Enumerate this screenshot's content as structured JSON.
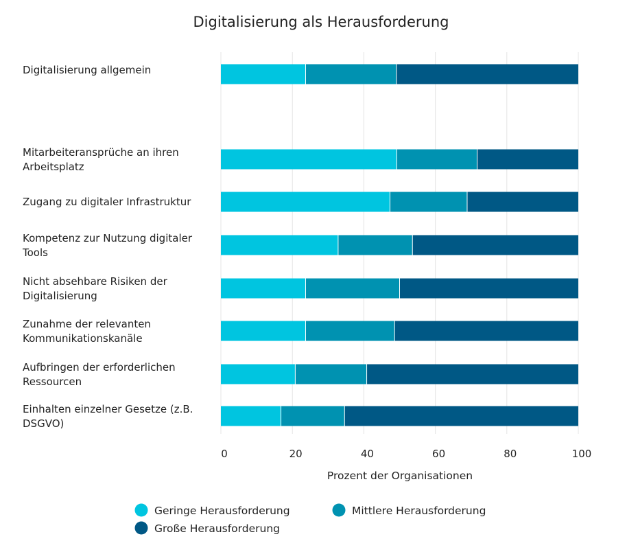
{
  "chart_data": {
    "type": "bar",
    "orientation": "horizontal",
    "stacked": true,
    "title": "Digitalisierung als Herausforderung",
    "xlabel": "Prozent der Organisationen",
    "ylabel": "",
    "xlim": [
      0,
      100
    ],
    "xticks": [
      "0",
      "20",
      "40",
      "60",
      "80",
      "100"
    ],
    "grid": true,
    "legend_position": "bottom",
    "categories": [
      "Digitalisierung allgemein",
      "",
      "Mitarbeiteransprüche an ihren Arbeitsplatz",
      "Zugang zu digitaler Infrastruktur",
      "Kompetenz zur Nutzung digitaler Tools",
      "Nicht absehbare Risiken der Digitalisierung",
      "Zunahme der relevanten Kommunikationskanäle",
      "Aufbringen der erforderlichen Ressourcen",
      "Einhalten einzelner Gesetze (z.B. DSGVO)"
    ],
    "category_lines": [
      [
        "Digitalisierung allgemein"
      ],
      [],
      [
        "Mitarbeiteransprüche an ihren",
        "Arbeitsplatz"
      ],
      [
        "Zugang zu digitaler Infrastruktur"
      ],
      [
        "Kompetenz zur Nutzung digitaler",
        "Tools"
      ],
      [
        "Nicht absehbare Risiken der",
        "Digitalisierung"
      ],
      [
        "Zunahme der relevanten",
        "Kommunikationskanäle"
      ],
      [
        "Aufbringen der erforderlichen",
        "Ressourcen"
      ],
      [
        "Einhalten einzelner Gesetze (z.B.",
        "DSGVO)"
      ]
    ],
    "series": [
      {
        "name": "Geringe Herausforderung",
        "color": "#00c5e0",
        "values": [
          23.7,
          null,
          49.2,
          47.3,
          32.8,
          23.7,
          23.7,
          20.8,
          16.8
        ]
      },
      {
        "name": "Mittlere Herausforderung",
        "color": "#0092b1",
        "values": [
          25.4,
          null,
          22.5,
          21.6,
          20.8,
          26.3,
          24.9,
          20.0,
          17.8
        ]
      },
      {
        "name": "Große Herausforderung",
        "color": "#005885",
        "values": [
          50.9,
          null,
          28.3,
          31.1,
          46.4,
          50.0,
          51.4,
          59.2,
          65.4
        ]
      }
    ]
  }
}
